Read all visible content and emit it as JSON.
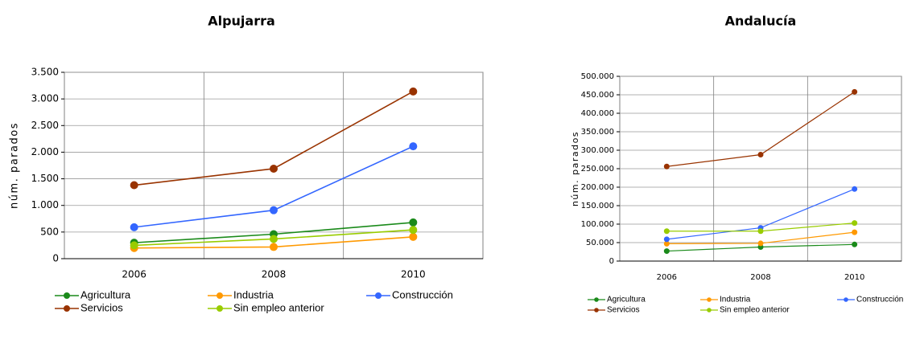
{
  "chart_data": [
    {
      "type": "line",
      "title": "Alpujarra",
      "y_label": "núm. parados",
      "categories": [
        "2006",
        "2008",
        "2010"
      ],
      "ylim": [
        0,
        3500
      ],
      "yticks": [
        0,
        500,
        {
          "value": 1000,
          "label": "1.000"
        },
        {
          "value": 1500,
          "label": "1.500"
        },
        {
          "value": 2000,
          "label": "2.000"
        },
        {
          "value": 2500,
          "label": "2.500"
        },
        {
          "value": 3000,
          "label": "3.000"
        },
        {
          "value": 3500,
          "label": "3.500"
        }
      ],
      "grid": true,
      "series": [
        {
          "name": "Agricultura",
          "color": "#1a8a1a",
          "values": [
            300,
            460,
            680
          ]
        },
        {
          "name": "Industria",
          "color": "#ff9900",
          "values": [
            200,
            220,
            410
          ]
        },
        {
          "name": "Construcción",
          "color": "#3366ff",
          "values": [
            590,
            910,
            2110
          ]
        },
        {
          "name": "Servicios",
          "color": "#993300",
          "values": [
            1380,
            1690,
            3140
          ]
        },
        {
          "name": "Sin empleo anterior",
          "color": "#99cc00",
          "values": [
            250,
            370,
            540
          ]
        }
      ]
    },
    {
      "type": "line",
      "title": "Andalucía",
      "y_label": "núm. parados",
      "categories": [
        "2006",
        "2008",
        "2010"
      ],
      "ylim": [
        0,
        500000
      ],
      "yticks": [
        0,
        {
          "value": 50000,
          "label": "50.000"
        },
        {
          "value": 100000,
          "label": "100.000"
        },
        {
          "value": 150000,
          "label": "150.000"
        },
        {
          "value": 200000,
          "label": "200.000"
        },
        {
          "value": 250000,
          "label": "250.000"
        },
        {
          "value": 300000,
          "label": "300.000"
        },
        {
          "value": 350000,
          "label": "350.000"
        },
        {
          "value": 400000,
          "label": "400.000"
        },
        {
          "value": 450000,
          "label": "450.000"
        },
        {
          "value": 500000,
          "label": "500.000"
        }
      ],
      "grid": true,
      "series": [
        {
          "name": "Agricultura",
          "color": "#1a8a1a",
          "values": [
            27000,
            38000,
            45000
          ]
        },
        {
          "name": "Industria",
          "color": "#ff9900",
          "values": [
            47000,
            48000,
            78000
          ]
        },
        {
          "name": "Construcción",
          "color": "#3366ff",
          "values": [
            59000,
            90000,
            195000
          ]
        },
        {
          "name": "Servicios",
          "color": "#993300",
          "values": [
            256000,
            288000,
            458000
          ]
        },
        {
          "name": "Sin empleo anterior",
          "color": "#99cc00",
          "values": [
            81000,
            81000,
            103000
          ]
        }
      ]
    }
  ]
}
